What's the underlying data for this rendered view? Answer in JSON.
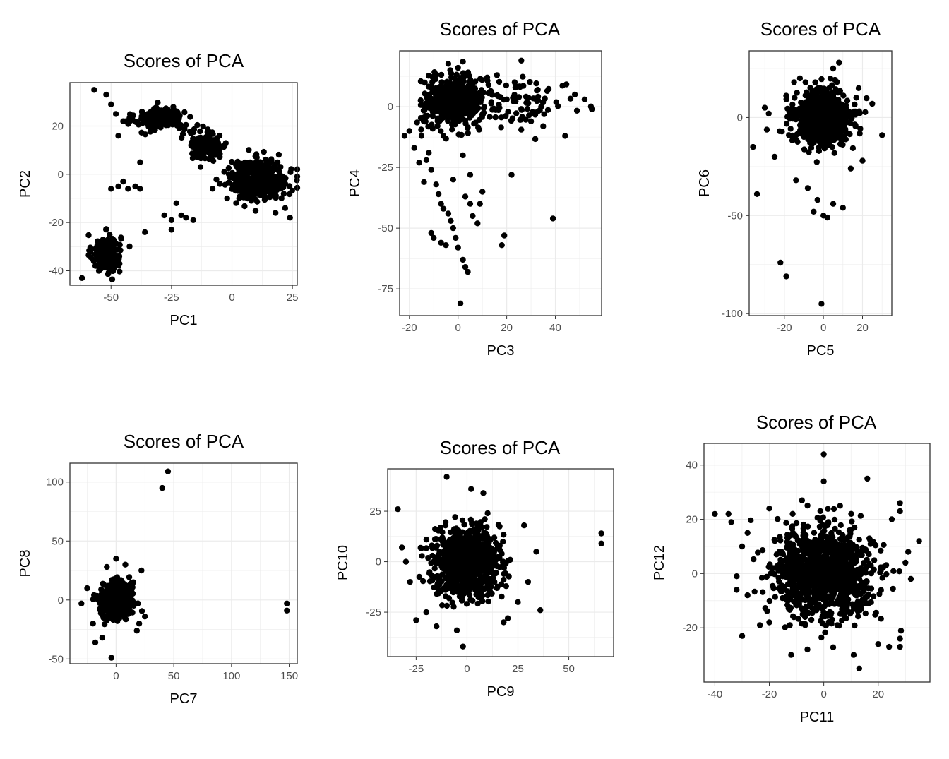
{
  "figure": {
    "grid": true,
    "point_color": "#000000",
    "gridline_color": "#ebebeb",
    "frame_color": "#333333",
    "tick_label_color": "#4d4d4d"
  },
  "chart_data": [
    {
      "type": "scatter",
      "title": "Scores of PCA",
      "xlabel": "PC1",
      "ylabel": "PC2",
      "xlim": [
        -67,
        27
      ],
      "ylim": [
        -46,
        38
      ],
      "xticks": [
        -50,
        -25,
        0,
        25
      ],
      "yticks": [
        -40,
        -20,
        0,
        20
      ],
      "clusters": [
        {
          "cx": -52,
          "cy": -33,
          "sx": 3,
          "sy": 4,
          "n": 160
        },
        {
          "cx": -30,
          "cy": 23,
          "sx": 5,
          "sy": 2.5,
          "n": 170
        },
        {
          "cx": -10,
          "cy": 12,
          "sx": 4,
          "sy": 3,
          "n": 150
        },
        {
          "cx": 11,
          "cy": -2,
          "sx": 6,
          "sy": 4,
          "n": 400
        }
      ],
      "points": [
        [
          -57,
          35
        ],
        [
          -52,
          33
        ],
        [
          -50,
          29
        ],
        [
          -48,
          25
        ],
        [
          -47,
          16
        ],
        [
          -38,
          5
        ],
        [
          -50,
          -6
        ],
        [
          -47,
          -5
        ],
        [
          -45,
          -3
        ],
        [
          -43,
          -6
        ],
        [
          -40,
          -5
        ],
        [
          -38,
          -6
        ],
        [
          -36,
          -24
        ],
        [
          -28,
          -17
        ],
        [
          -25,
          -19
        ],
        [
          -23,
          -12
        ],
        [
          -21,
          -17
        ],
        [
          -19,
          -18
        ],
        [
          -16,
          -19
        ],
        [
          -25,
          -23
        ],
        [
          -62,
          -43
        ],
        [
          -55,
          -40
        ],
        [
          -5,
          -4
        ],
        [
          -8,
          -6
        ],
        [
          -2,
          -10
        ],
        [
          3,
          -10
        ],
        [
          8,
          -11
        ],
        [
          18,
          -16
        ],
        [
          22,
          -14
        ],
        [
          24,
          -18
        ],
        [
          -13,
          3
        ],
        [
          -17,
          17
        ],
        [
          -45,
          22
        ]
      ]
    },
    {
      "type": "scatter",
      "title": "Scores of PCA",
      "xlabel": "PC3",
      "ylabel": "PC4",
      "xlim": [
        -24,
        59
      ],
      "ylim": [
        -86,
        23
      ],
      "xticks": [
        -20,
        0,
        20,
        40
      ],
      "yticks": [
        -75,
        -50,
        -25,
        0
      ],
      "clusters": [
        {
          "cx": -2,
          "cy": 2,
          "sx": 6,
          "sy": 5,
          "n": 500
        },
        {
          "cx": 25,
          "cy": 2,
          "sx": 12,
          "sy": 5,
          "n": 90
        }
      ],
      "points": [
        [
          -20,
          -10
        ],
        [
          -18,
          -17
        ],
        [
          -16,
          -23
        ],
        [
          -14,
          -31
        ],
        [
          -13,
          -22
        ],
        [
          -11,
          -26
        ],
        [
          -9,
          -32
        ],
        [
          -8,
          -36
        ],
        [
          -7,
          -40
        ],
        [
          -6,
          -42
        ],
        [
          -4,
          -44
        ],
        [
          -3,
          -47
        ],
        [
          -2,
          -50
        ],
        [
          -1,
          -54
        ],
        [
          0,
          -58
        ],
        [
          2,
          -63
        ],
        [
          3,
          -66
        ],
        [
          4,
          -68
        ],
        [
          1,
          -81
        ],
        [
          -11,
          -52
        ],
        [
          -10,
          -54
        ],
        [
          -7,
          -56
        ],
        [
          -5,
          -57
        ],
        [
          -2,
          -30
        ],
        [
          3,
          -37
        ],
        [
          5,
          -40
        ],
        [
          6,
          -45
        ],
        [
          8,
          -48
        ],
        [
          10,
          -35
        ],
        [
          9,
          -40
        ],
        [
          18,
          -57
        ],
        [
          19,
          -53
        ],
        [
          22,
          -28
        ],
        [
          39,
          -46
        ],
        [
          26,
          19
        ],
        [
          44,
          -12
        ],
        [
          48,
          5
        ],
        [
          55,
          -1
        ],
        [
          52,
          3
        ],
        [
          35,
          -8
        ],
        [
          30,
          -6
        ],
        [
          -12,
          -19
        ],
        [
          -6,
          -12
        ],
        [
          2,
          -20
        ],
        [
          5,
          -28
        ],
        [
          -15,
          -12
        ],
        [
          0,
          16
        ],
        [
          12,
          12
        ],
        [
          16,
          13
        ]
      ]
    },
    {
      "type": "scatter",
      "title": "Scores of PCA",
      "xlabel": "PC5",
      "ylabel": "PC6",
      "xlim": [
        -38,
        35
      ],
      "ylim": [
        -101,
        34
      ],
      "xticks": [
        -20,
        0,
        20
      ],
      "yticks": [
        -100,
        -50,
        0
      ],
      "clusters": [
        {
          "cx": 0,
          "cy": 0,
          "sx": 7,
          "sy": 7,
          "n": 850
        }
      ],
      "points": [
        [
          -36,
          -15
        ],
        [
          -34,
          -39
        ],
        [
          -22,
          -74
        ],
        [
          -19,
          -81
        ],
        [
          -1,
          -95
        ],
        [
          -14,
          -32
        ],
        [
          -8,
          -36
        ],
        [
          -5,
          -48
        ],
        [
          -3,
          -42
        ],
        [
          0,
          -50
        ],
        [
          2,
          -51
        ],
        [
          5,
          -44
        ],
        [
          10,
          -46
        ],
        [
          14,
          -26
        ],
        [
          -25,
          -20
        ],
        [
          -28,
          2
        ],
        [
          30,
          -9
        ],
        [
          25,
          7
        ],
        [
          -12,
          20
        ],
        [
          5,
          25
        ],
        [
          8,
          28
        ],
        [
          -15,
          18
        ],
        [
          18,
          15
        ],
        [
          -30,
          5
        ],
        [
          20,
          -22
        ]
      ]
    },
    {
      "type": "scatter",
      "title": "Scores of PCA",
      "xlabel": "PC7",
      "ylabel": "PC8",
      "xlim": [
        -40,
        157
      ],
      "ylim": [
        -54,
        116
      ],
      "xticks": [
        0,
        50,
        100,
        150
      ],
      "yticks": [
        -50,
        0,
        50,
        100
      ],
      "clusters": [
        {
          "cx": 0,
          "cy": 0,
          "sx": 6,
          "sy": 7,
          "n": 650
        }
      ],
      "points": [
        [
          40,
          95
        ],
        [
          45,
          109
        ],
        [
          148,
          -3
        ],
        [
          148,
          -9
        ],
        [
          -4,
          -49
        ],
        [
          -18,
          -36
        ],
        [
          -12,
          -32
        ],
        [
          18,
          -26
        ],
        [
          25,
          -14
        ],
        [
          20,
          -20
        ],
        [
          -30,
          -3
        ],
        [
          -25,
          10
        ],
        [
          0,
          35
        ],
        [
          8,
          30
        ],
        [
          -8,
          28
        ],
        [
          22,
          25
        ],
        [
          -20,
          -20
        ],
        [
          15,
          15
        ]
      ]
    },
    {
      "type": "scatter",
      "title": "Scores of PCA",
      "xlabel": "PC9",
      "ylabel": "PC10",
      "xlim": [
        -39,
        72
      ],
      "ylim": [
        -47,
        46
      ],
      "xticks": [
        -25,
        0,
        25,
        50
      ],
      "yticks": [
        -25,
        0,
        25
      ],
      "clusters": [
        {
          "cx": 0,
          "cy": 0,
          "sx": 8,
          "sy": 8,
          "n": 900
        }
      ],
      "points": [
        [
          -34,
          26
        ],
        [
          66,
          14
        ],
        [
          66,
          9
        ],
        [
          -32,
          7
        ],
        [
          -25,
          -29
        ],
        [
          -20,
          -25
        ],
        [
          -15,
          -32
        ],
        [
          -5,
          -34
        ],
        [
          -2,
          -42
        ],
        [
          20,
          -28
        ],
        [
          18,
          -30
        ],
        [
          36,
          -24
        ],
        [
          34,
          5
        ],
        [
          28,
          18
        ],
        [
          -10,
          42
        ],
        [
          2,
          36
        ],
        [
          8,
          34
        ],
        [
          -28,
          -10
        ],
        [
          -30,
          0
        ],
        [
          30,
          -10
        ],
        [
          25,
          -20
        ]
      ]
    },
    {
      "type": "scatter",
      "title": "Scores of PCA",
      "xlabel": "PC11",
      "ylabel": "PC12",
      "xlim": [
        -44,
        39
      ],
      "ylim": [
        -40,
        48
      ],
      "xticks": [
        -40,
        -20,
        0,
        20
      ],
      "yticks": [
        -20,
        0,
        20,
        40
      ],
      "clusters": [
        {
          "cx": 0,
          "cy": 0,
          "sx": 9,
          "sy": 8,
          "n": 1100
        }
      ],
      "points": [
        [
          -40,
          22
        ],
        [
          -35,
          22
        ],
        [
          -34,
          19
        ],
        [
          -32,
          -1
        ],
        [
          -32,
          -6
        ],
        [
          -30,
          -23
        ],
        [
          -28,
          -8
        ],
        [
          -20,
          -18
        ],
        [
          -12,
          -30
        ],
        [
          -6,
          -28
        ],
        [
          0,
          44
        ],
        [
          0,
          34
        ],
        [
          16,
          35
        ],
        [
          13,
          -35
        ],
        [
          11,
          -30
        ],
        [
          20,
          -26
        ],
        [
          24,
          -27
        ],
        [
          28,
          -24
        ],
        [
          28,
          -27
        ],
        [
          35,
          12
        ],
        [
          31,
          8
        ],
        [
          28,
          26
        ],
        [
          28,
          23
        ],
        [
          32,
          -2
        ],
        [
          30,
          4
        ],
        [
          -28,
          15
        ],
        [
          -30,
          10
        ],
        [
          -20,
          24
        ],
        [
          25,
          20
        ],
        [
          -8,
          27
        ],
        [
          6,
          25
        ]
      ]
    }
  ]
}
